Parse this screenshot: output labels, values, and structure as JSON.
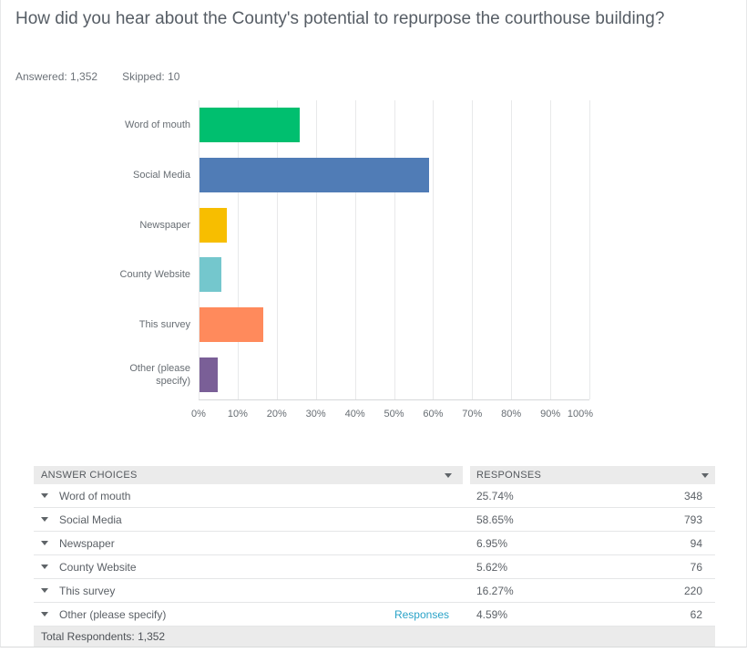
{
  "header": {
    "title": "How did you hear about the County's potential to repurpose the courthouse building?",
    "answered": "Answered: 1,352",
    "skipped": "Skipped: 10"
  },
  "chart_data": {
    "type": "bar",
    "orientation": "horizontal",
    "title": "",
    "xlabel": "",
    "ylabel": "",
    "xlim": [
      0,
      100
    ],
    "grid": true,
    "gridline_color": "#e8e9ea",
    "categories": [
      "Word of mouth",
      "Social Media",
      "Newspaper",
      "County Website",
      "This survey",
      "Other (please specify)"
    ],
    "category_display": [
      "Word of mouth",
      "Social Media",
      "Newspaper",
      "County Website",
      "This survey",
      "Other (please\nspecify)"
    ],
    "values": [
      25.74,
      58.65,
      6.95,
      5.62,
      16.27,
      4.59
    ],
    "bar_colors": [
      "#00bf6f",
      "#507cb6",
      "#f7be00",
      "#74c7cd",
      "#ff8a5c",
      "#7a5f97"
    ],
    "x_ticks": [
      "0%",
      "10%",
      "20%",
      "30%",
      "40%",
      "50%",
      "60%",
      "70%",
      "80%",
      "90%",
      "100%"
    ]
  },
  "table": {
    "columns": [
      {
        "label": "ANSWER CHOICES"
      },
      {
        "label": "RESPONSES"
      }
    ],
    "rows": [
      {
        "choice": "Word of mouth",
        "pct": "25.74%",
        "count": "348"
      },
      {
        "choice": "Social Media",
        "pct": "58.65%",
        "count": "793"
      },
      {
        "choice": "Newspaper",
        "pct": "6.95%",
        "count": "94"
      },
      {
        "choice": "County Website",
        "pct": "5.62%",
        "count": "76"
      },
      {
        "choice": "This survey",
        "pct": "16.27%",
        "count": "220"
      },
      {
        "choice": "Other (please specify)",
        "link": "Responses",
        "pct": "4.59%",
        "count": "62"
      }
    ],
    "footer": "Total Respondents: 1,352"
  }
}
